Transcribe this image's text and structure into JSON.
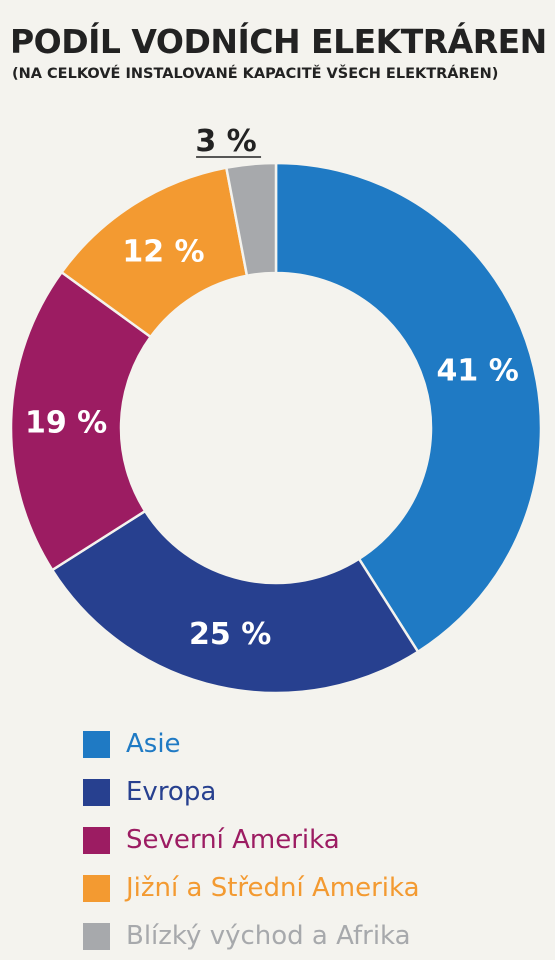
{
  "header": {
    "title": "PODÍL VODNÍCH ELEKTRÁREN",
    "subtitle": "(NA CELKOVÉ INSTALOVANÉ KAPACITĚ VŠECH ELEKTRÁREN)"
  },
  "chart_data": {
    "type": "pie",
    "donut": true,
    "title": "PODÍL VODNÍCH ELEKTRÁREN",
    "subtitle": "(NA CELKOVÉ INSTALOVANÉ KAPACITĚ VŠECH ELEKTRÁREN)",
    "categories": [
      "Asie",
      "Evropa",
      "Severní Amerika",
      "Jižní a Střední Amerika",
      "Blízký východ a Afrika"
    ],
    "values": [
      41,
      25,
      19,
      12,
      3
    ],
    "unit": "%",
    "data_labels": [
      "41 %",
      "25 %",
      "19 %",
      "12 %",
      "3 %"
    ],
    "colors": [
      "#1f7ac4",
      "#27408f",
      "#9c1c62",
      "#f39a31",
      "#a7a9ac"
    ],
    "legend_position": "bottom"
  }
}
